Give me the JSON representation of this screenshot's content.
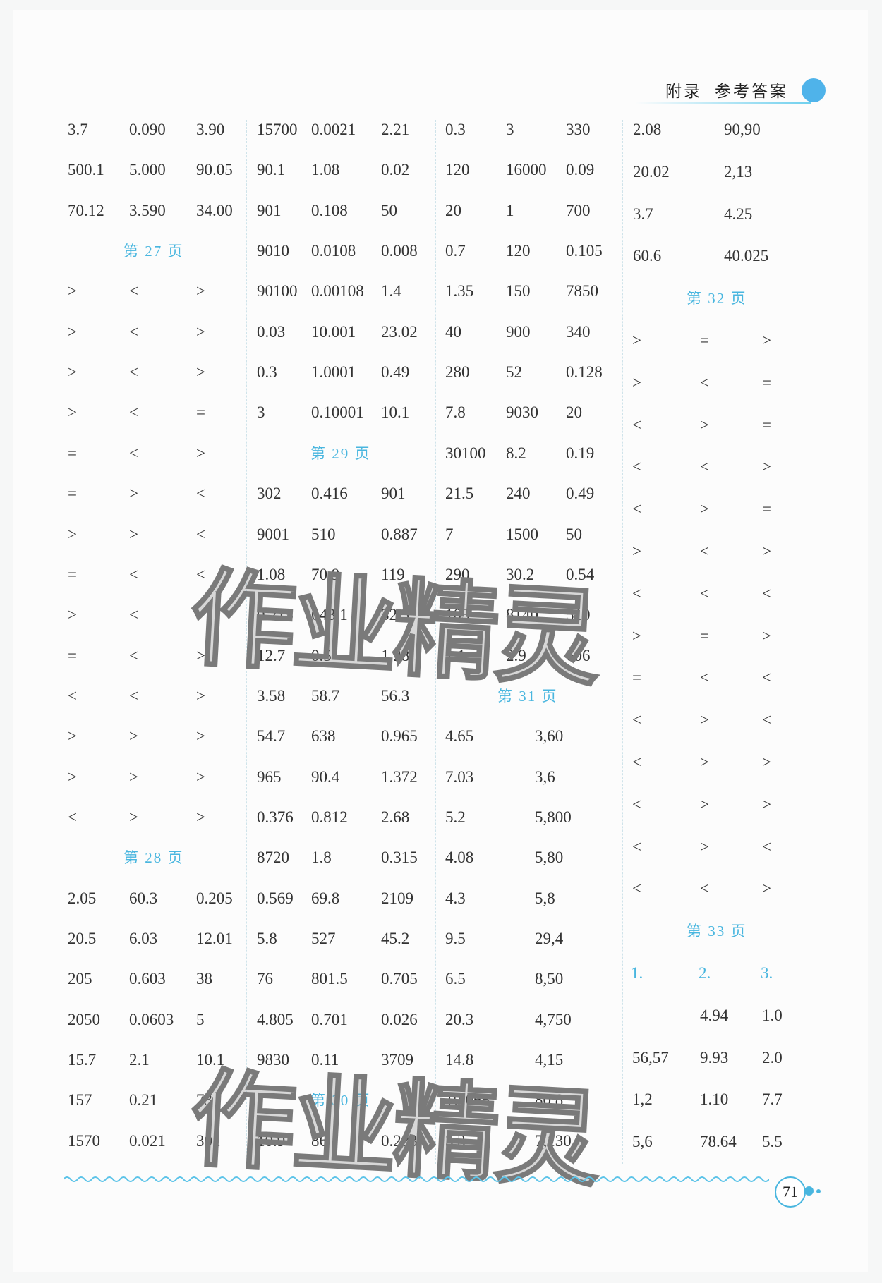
{
  "header": {
    "section": "附录",
    "title": "参考答案"
  },
  "page_number": "71",
  "watermark": "作业精灵",
  "accent_color": "#49b6df",
  "columns": [
    {
      "rows": [
        {
          "cells": [
            "3.7",
            "0.090",
            "3.90"
          ]
        },
        {
          "cells": [
            "500.1",
            "5.000",
            "90.05"
          ]
        },
        {
          "cells": [
            "70.12",
            "3.590",
            "34.00"
          ]
        },
        {
          "heading": "第 27 页"
        },
        {
          "cells": [
            ">",
            "<",
            ">"
          ]
        },
        {
          "cells": [
            ">",
            "<",
            ">"
          ]
        },
        {
          "cells": [
            ">",
            "<",
            ">"
          ]
        },
        {
          "cells": [
            ">",
            "<",
            "="
          ]
        },
        {
          "cells": [
            "=",
            "<",
            ">"
          ]
        },
        {
          "cells": [
            "=",
            ">",
            "<"
          ]
        },
        {
          "cells": [
            ">",
            ">",
            "<"
          ]
        },
        {
          "cells": [
            "=",
            "<",
            "<"
          ]
        },
        {
          "cells": [
            ">",
            "<",
            ">"
          ]
        },
        {
          "cells": [
            "=",
            "<",
            ">"
          ]
        },
        {
          "cells": [
            "<",
            "<",
            ">"
          ]
        },
        {
          "cells": [
            ">",
            ">",
            ">"
          ]
        },
        {
          "cells": [
            ">",
            ">",
            ">"
          ]
        },
        {
          "cells": [
            "<",
            ">",
            ">"
          ]
        },
        {
          "heading": "第 28 页"
        },
        {
          "cells": [
            "2.05",
            "60.3",
            "0.205"
          ]
        },
        {
          "cells": [
            "20.5",
            "6.03",
            "12.01"
          ]
        },
        {
          "cells": [
            "205",
            "0.603",
            "38"
          ]
        },
        {
          "cells": [
            "2050",
            "0.0603",
            "5"
          ]
        },
        {
          "cells": [
            "15.7",
            "2.1",
            "10.1"
          ]
        },
        {
          "cells": [
            "157",
            "0.21",
            "73"
          ]
        },
        {
          "cells": [
            "1570",
            "0.021",
            "301"
          ]
        }
      ]
    },
    {
      "rows": [
        {
          "cells": [
            "15700",
            "0.0021",
            "2.21"
          ]
        },
        {
          "cells": [
            "90.1",
            "1.08",
            "0.02"
          ]
        },
        {
          "cells": [
            "901",
            "0.108",
            "50"
          ]
        },
        {
          "cells": [
            "9010",
            "0.0108",
            "0.008"
          ]
        },
        {
          "cells": [
            "90100",
            "0.00108",
            "1.4"
          ]
        },
        {
          "cells": [
            "0.03",
            "10.001",
            "23.02"
          ]
        },
        {
          "cells": [
            "0.3",
            "1.0001",
            "0.49"
          ]
        },
        {
          "cells": [
            "3",
            "0.10001",
            "10.1"
          ]
        },
        {
          "heading": "第 29 页"
        },
        {
          "cells": [
            "302",
            "0.416",
            "901"
          ]
        },
        {
          "cells": [
            "9001",
            "510",
            "0.887"
          ]
        },
        {
          "cells": [
            "1.08",
            "70.9",
            "119"
          ]
        },
        {
          "cells": [
            "0.215",
            "643.1",
            "32.5"
          ]
        },
        {
          "cells": [
            "12.7",
            "0.5",
            "1.28"
          ]
        },
        {
          "cells": [
            "3.58",
            "58.7",
            "56.3"
          ]
        },
        {
          "cells": [
            "54.7",
            "638",
            "0.965"
          ]
        },
        {
          "cells": [
            "965",
            "90.4",
            "1.372"
          ]
        },
        {
          "cells": [
            "0.376",
            "0.812",
            "2.68"
          ]
        },
        {
          "cells": [
            "8720",
            "1.8",
            "0.315"
          ]
        },
        {
          "cells": [
            "0.569",
            "69.8",
            "2109"
          ]
        },
        {
          "cells": [
            "5.8",
            "527",
            "45.2"
          ]
        },
        {
          "cells": [
            "76",
            "801.5",
            "0.705"
          ]
        },
        {
          "cells": [
            "4.805",
            "0.701",
            "0.026"
          ]
        },
        {
          "cells": [
            "9830",
            "0.11",
            "3709"
          ]
        },
        {
          "heading": "第 30 页"
        },
        {
          "cells": [
            "10.9",
            "86",
            "0.283"
          ]
        }
      ]
    },
    {
      "rows": [
        {
          "cells": [
            "0.3",
            "3",
            "330"
          ]
        },
        {
          "cells": [
            "120",
            "16000",
            "0.09"
          ]
        },
        {
          "cells": [
            "20",
            "1",
            "700"
          ]
        },
        {
          "cells": [
            "0.7",
            "120",
            "0.105"
          ]
        },
        {
          "cells": [
            "1.35",
            "150",
            "7850"
          ]
        },
        {
          "cells": [
            "40",
            "900",
            "340"
          ]
        },
        {
          "cells": [
            "280",
            "52",
            "0.128"
          ]
        },
        {
          "cells": [
            "7.8",
            "9030",
            "20"
          ]
        },
        {
          "cells": [
            "30100",
            "8.2",
            "0.19"
          ]
        },
        {
          "cells": [
            "21.5",
            "240",
            "0.49"
          ]
        },
        {
          "cells": [
            "7",
            "1500",
            "50"
          ]
        },
        {
          "cells": [
            "290",
            "30.2",
            "0.54"
          ]
        },
        {
          "cells": [
            "103",
            "8140",
            "510"
          ]
        },
        {
          "cells": [
            "1.1",
            "2.9",
            "606"
          ]
        },
        {
          "heading": "第 31 页"
        },
        {
          "pair": [
            "4.65",
            "3,60"
          ]
        },
        {
          "pair": [
            "7.03",
            "3,6"
          ]
        },
        {
          "pair": [
            "5.2",
            "5,800"
          ]
        },
        {
          "pair": [
            "4.08",
            "5,80"
          ]
        },
        {
          "pair": [
            "4.3",
            "5,8"
          ]
        },
        {
          "pair": [
            "9.5",
            "29,4"
          ]
        },
        {
          "pair": [
            "6.5",
            "8,50"
          ]
        },
        {
          "pair": [
            "20.3",
            "4,750"
          ]
        },
        {
          "pair": [
            "14.8",
            "4,15"
          ]
        },
        {
          "pair": [
            "10.065",
            "80,8"
          ]
        },
        {
          "pair": [
            "3.3",
            "7,130"
          ]
        }
      ]
    },
    {
      "rows": [
        {
          "pair": [
            "2.08",
            "90,90"
          ]
        },
        {
          "pair": [
            "20.02",
            "2,13"
          ]
        },
        {
          "pair": [
            "3.7",
            "4.25"
          ]
        },
        {
          "pair": [
            "60.6",
            "40.025"
          ]
        },
        {
          "heading": "第 32 页"
        },
        {
          "cells": [
            ">",
            "=",
            ">"
          ]
        },
        {
          "cells": [
            ">",
            "<",
            "="
          ]
        },
        {
          "cells": [
            "<",
            ">",
            "="
          ]
        },
        {
          "cells": [
            "<",
            "<",
            ">"
          ]
        },
        {
          "cells": [
            "<",
            ">",
            "="
          ]
        },
        {
          "cells": [
            ">",
            "<",
            ">"
          ]
        },
        {
          "cells": [
            "<",
            "<",
            "<"
          ]
        },
        {
          "cells": [
            ">",
            "=",
            ">"
          ]
        },
        {
          "cells": [
            "=",
            "<",
            "<"
          ]
        },
        {
          "cells": [
            "<",
            ">",
            "<"
          ]
        },
        {
          "cells": [
            "<",
            ">",
            ">"
          ]
        },
        {
          "cells": [
            "<",
            ">",
            ">"
          ]
        },
        {
          "cells": [
            "<",
            ">",
            "<"
          ]
        },
        {
          "cells": [
            "<",
            "<",
            ">"
          ]
        },
        {
          "heading": "第 33 页"
        },
        {
          "qnums": [
            "1.",
            "2.",
            "3."
          ]
        },
        {
          "cells": [
            "",
            "4.94",
            "1.0"
          ]
        },
        {
          "cells": [
            "56,57",
            "9.93",
            "2.0"
          ]
        },
        {
          "cells": [
            "1,2",
            "1.10",
            "7.7"
          ]
        },
        {
          "cells": [
            "5,6",
            "78.64",
            "5.5"
          ]
        }
      ]
    }
  ]
}
